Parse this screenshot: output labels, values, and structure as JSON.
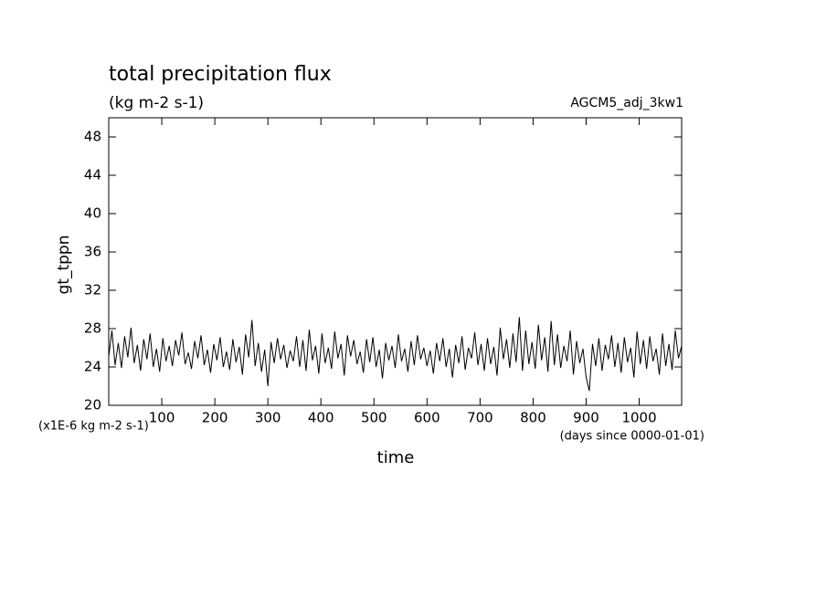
{
  "chart_data": {
    "type": "line",
    "title": "total precipitation flux",
    "subtitle": "(kg m-2 s-1)",
    "annotation": "AGCM5_adj_3kw1",
    "y_label": "gt_tppn",
    "x_label": "time",
    "y_unit": "(x1E-6 kg m-2 s-1)",
    "x_unit": "(days since 0000-01-01)",
    "color": "#000000",
    "xlim": [
      0,
      1080
    ],
    "ylim": [
      20,
      50
    ],
    "xticks": [
      100,
      200,
      300,
      400,
      500,
      600,
      700,
      800,
      900,
      1000
    ],
    "yticks": [
      20,
      24,
      28,
      32,
      36,
      40,
      44,
      48
    ],
    "x": [
      0,
      6,
      12,
      18,
      24,
      30,
      36,
      42,
      48,
      54,
      60,
      66,
      72,
      78,
      84,
      90,
      96,
      102,
      108,
      114,
      120,
      126,
      132,
      138,
      144,
      150,
      156,
      162,
      168,
      174,
      180,
      186,
      192,
      198,
      204,
      210,
      216,
      222,
      228,
      234,
      240,
      246,
      252,
      258,
      264,
      270,
      276,
      282,
      288,
      294,
      300,
      306,
      312,
      318,
      324,
      330,
      336,
      342,
      348,
      354,
      360,
      366,
      372,
      378,
      384,
      390,
      396,
      402,
      408,
      414,
      420,
      426,
      432,
      438,
      444,
      450,
      456,
      462,
      468,
      474,
      480,
      486,
      492,
      498,
      504,
      510,
      516,
      522,
      528,
      534,
      540,
      546,
      552,
      558,
      564,
      570,
      576,
      582,
      588,
      594,
      600,
      606,
      612,
      618,
      624,
      630,
      636,
      642,
      648,
      654,
      660,
      666,
      672,
      678,
      684,
      690,
      696,
      702,
      708,
      714,
      720,
      726,
      732,
      738,
      744,
      750,
      756,
      762,
      768,
      774,
      780,
      786,
      792,
      798,
      804,
      810,
      816,
      822,
      828,
      834,
      840,
      846,
      852,
      858,
      864,
      870,
      876,
      882,
      888,
      894,
      900,
      906,
      912,
      918,
      924,
      930,
      936,
      942,
      948,
      954,
      960,
      966,
      972,
      978,
      984,
      990,
      996,
      1002,
      1008,
      1014,
      1020,
      1026,
      1032,
      1038,
      1044,
      1050,
      1056,
      1062,
      1068,
      1074,
      1080
    ],
    "values": [
      25.1,
      27.8,
      24.2,
      26.5,
      23.9,
      27.2,
      25.0,
      28.1,
      24.4,
      26.3,
      23.6,
      26.9,
      24.8,
      27.5,
      24.0,
      25.9,
      23.5,
      27.0,
      24.6,
      26.2,
      24.1,
      26.8,
      25.2,
      27.6,
      24.3,
      25.5,
      23.8,
      26.7,
      24.9,
      27.3,
      24.2,
      25.8,
      23.4,
      26.4,
      24.7,
      27.1,
      24.0,
      25.6,
      23.7,
      26.9,
      24.5,
      26.1,
      23.2,
      27.4,
      25.0,
      28.9,
      24.1,
      26.5,
      23.5,
      25.8,
      22.0,
      26.6,
      24.4,
      27.0,
      24.8,
      26.3,
      23.9,
      25.7,
      24.6,
      27.2,
      24.0,
      26.8,
      23.6,
      27.9,
      24.7,
      26.2,
      23.3,
      27.5,
      24.4,
      26.0,
      23.8,
      27.7,
      24.9,
      26.4,
      23.1,
      27.3,
      25.1,
      26.8,
      24.3,
      25.6,
      23.4,
      26.9,
      24.5,
      27.1,
      24.0,
      25.8,
      22.8,
      26.5,
      24.7,
      26.2,
      23.9,
      27.4,
      24.6,
      25.9,
      23.5,
      26.7,
      24.2,
      27.3,
      24.8,
      26.0,
      24.1,
      25.7,
      23.3,
      26.5,
      24.6,
      27.0,
      24.0,
      25.9,
      22.9,
      26.3,
      24.4,
      27.2,
      23.7,
      26.0,
      24.9,
      27.6,
      24.2,
      26.4,
      23.6,
      27.0,
      24.3,
      26.1,
      23.1,
      28.1,
      24.8,
      26.9,
      23.9,
      27.5,
      24.5,
      29.2,
      23.6,
      27.8,
      24.3,
      26.6,
      23.8,
      28.4,
      24.7,
      27.1,
      23.5,
      28.8,
      24.2,
      27.4,
      23.9,
      26.2,
      24.6,
      27.8,
      23.2,
      26.7,
      24.4,
      25.9,
      22.9,
      21.5,
      26.4,
      24.1,
      27.0,
      23.6,
      26.3,
      24.8,
      27.3,
      24.0,
      26.5,
      23.4,
      27.1,
      24.5,
      26.0,
      22.9,
      27.7,
      24.3,
      26.8,
      23.8,
      27.2,
      24.6,
      25.9,
      23.2,
      27.5,
      24.1,
      26.4,
      23.7,
      27.8,
      24.9,
      26.2
    ]
  }
}
